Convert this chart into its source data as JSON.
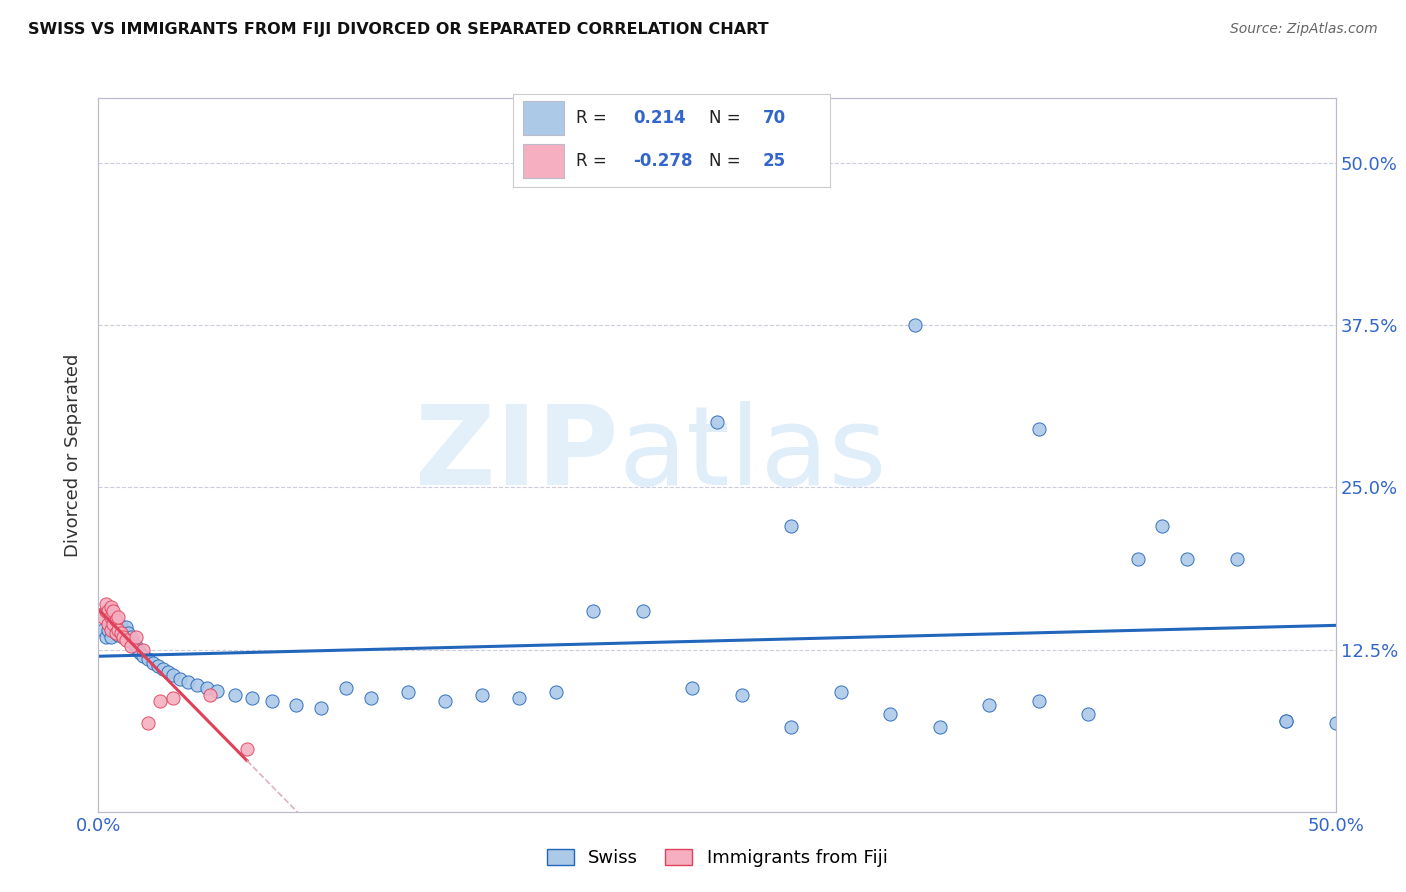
{
  "title": "SWISS VS IMMIGRANTS FROM FIJI DIVORCED OR SEPARATED CORRELATION CHART",
  "source": "Source: ZipAtlas.com",
  "ylabel": "Divorced or Separated",
  "xlim": [
    0.0,
    0.5
  ],
  "ylim": [
    0.0,
    0.55
  ],
  "yticks": [
    0.0,
    0.125,
    0.25,
    0.375,
    0.5
  ],
  "ytick_labels": [
    "",
    "12.5%",
    "25.0%",
    "37.5%",
    "50.0%"
  ],
  "swiss_R": 0.214,
  "swiss_N": 70,
  "fiji_R": -0.278,
  "fiji_N": 25,
  "swiss_color": "#adc9e8",
  "fiji_color": "#f5afc0",
  "swiss_line_color": "#2266bb",
  "fiji_line_color": "#e0405a",
  "fiji_line_ext_color": "#e0b0bc",
  "background_color": "#ffffff",
  "grid_color": "#ccccdd",
  "swiss_x": [
    0.002,
    0.003,
    0.004,
    0.005,
    0.005,
    0.006,
    0.006,
    0.007,
    0.007,
    0.008,
    0.008,
    0.009,
    0.009,
    0.01,
    0.01,
    0.011,
    0.011,
    0.012,
    0.012,
    0.013,
    0.014,
    0.015,
    0.016,
    0.017,
    0.018,
    0.02,
    0.022,
    0.024,
    0.026,
    0.028,
    0.03,
    0.033,
    0.036,
    0.04,
    0.044,
    0.048,
    0.055,
    0.062,
    0.07,
    0.08,
    0.09,
    0.1,
    0.11,
    0.125,
    0.14,
    0.155,
    0.17,
    0.185,
    0.2,
    0.22,
    0.24,
    0.26,
    0.28,
    0.3,
    0.32,
    0.34,
    0.36,
    0.38,
    0.4,
    0.42,
    0.44,
    0.46,
    0.48,
    0.5,
    0.25,
    0.28,
    0.33,
    0.38,
    0.43,
    0.48
  ],
  "swiss_y": [
    0.14,
    0.135,
    0.14,
    0.135,
    0.145,
    0.14,
    0.145,
    0.138,
    0.142,
    0.136,
    0.14,
    0.138,
    0.143,
    0.135,
    0.14,
    0.137,
    0.142,
    0.132,
    0.138,
    0.135,
    0.13,
    0.128,
    0.125,
    0.122,
    0.12,
    0.118,
    0.115,
    0.112,
    0.11,
    0.108,
    0.105,
    0.102,
    0.1,
    0.098,
    0.095,
    0.093,
    0.09,
    0.088,
    0.085,
    0.082,
    0.08,
    0.095,
    0.088,
    0.092,
    0.085,
    0.09,
    0.088,
    0.092,
    0.155,
    0.155,
    0.095,
    0.09,
    0.065,
    0.092,
    0.075,
    0.065,
    0.082,
    0.085,
    0.075,
    0.195,
    0.195,
    0.195,
    0.07,
    0.068,
    0.3,
    0.22,
    0.375,
    0.295,
    0.22,
    0.07
  ],
  "fiji_x": [
    0.002,
    0.003,
    0.003,
    0.004,
    0.004,
    0.005,
    0.005,
    0.005,
    0.006,
    0.006,
    0.007,
    0.007,
    0.008,
    0.008,
    0.009,
    0.01,
    0.011,
    0.013,
    0.015,
    0.018,
    0.02,
    0.025,
    0.03,
    0.045,
    0.06
  ],
  "fiji_y": [
    0.15,
    0.155,
    0.16,
    0.145,
    0.155,
    0.14,
    0.15,
    0.158,
    0.145,
    0.155,
    0.138,
    0.148,
    0.14,
    0.15,
    0.138,
    0.135,
    0.132,
    0.128,
    0.135,
    0.125,
    0.068,
    0.085,
    0.088,
    0.09,
    0.048
  ]
}
